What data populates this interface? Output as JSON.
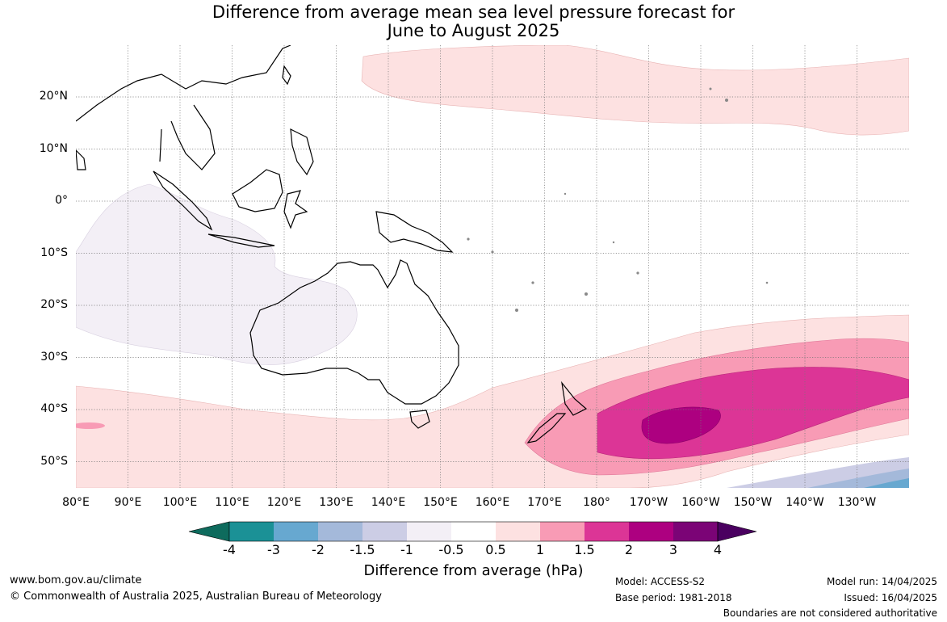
{
  "title_line1": "Difference from average mean sea level pressure forecast for",
  "title_line2": "June to August 2025",
  "lat_labels": [
    "20°N",
    "10°N",
    "0°",
    "10°S",
    "20°S",
    "30°S",
    "40°S",
    "50°S"
  ],
  "lon_labels": [
    "80°E",
    "90°E",
    "100°E",
    "110°E",
    "120°E",
    "130°E",
    "140°E",
    "150°E",
    "160°E",
    "170°E",
    "180°",
    "170°W",
    "160°W",
    "150°W",
    "140°W",
    "130°W"
  ],
  "colorbar": {
    "ticks": [
      "-4",
      "-3",
      "-2",
      "-1.5",
      "-1",
      "-0.5",
      "0.5",
      "1",
      "1.5",
      "2",
      "3",
      "4"
    ],
    "colors": [
      "#0e6b5d",
      "#1b9196",
      "#67a8d0",
      "#a4b9da",
      "#cccde5",
      "#f3eff6",
      "#ffffff",
      "#fde1e1",
      "#f89bb5",
      "#dc3596",
      "#ad0080",
      "#7b0476",
      "#4a0060"
    ],
    "title": "Difference from average (hPa)"
  },
  "footer": {
    "url": "www.bom.gov.au/climate",
    "copyright": "© Commonwealth of Australia 2025, Australian Bureau of Meteorology",
    "model": "Model: ACCESS-S2",
    "base_period": "Base period: 1981-2018",
    "model_run": "Model run: 14/04/2025",
    "issued": "Issued: 16/04/2025",
    "disclaimer": "Boundaries are not considered authoritative"
  }
}
